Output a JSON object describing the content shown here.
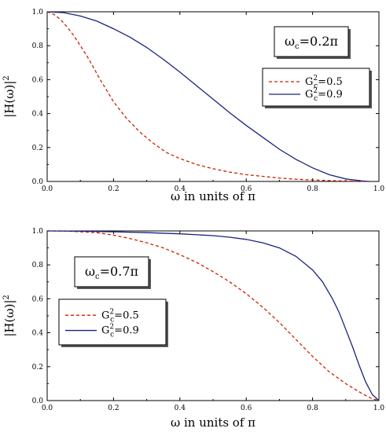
{
  "chart_data": [
    {
      "type": "line",
      "annotation": {
        "main": "ω",
        "sub": "c",
        "rest": "=0.2π"
      },
      "xlabel": "ω in units of π",
      "ylabel": {
        "main": "|H(ω)|",
        "sup": "2"
      },
      "xlim": [
        0,
        1
      ],
      "ylim": [
        0,
        1
      ],
      "xticks": [
        "0.0",
        "0.2",
        "0.4",
        "0.6",
        "0.8",
        "1.0"
      ],
      "yticks": [
        "0.0",
        "0.2",
        "0.4",
        "0.6",
        "0.8",
        "1.0"
      ],
      "grid": false,
      "legend_position": "right",
      "series": [
        {
          "legend": {
            "main": "G",
            "sup": "2",
            "sub": "c",
            "rest": "=0.5"
          },
          "color": "#cc2200",
          "dash": "dashed",
          "x": [
            0,
            0.02,
            0.04,
            0.06,
            0.08,
            0.1,
            0.12,
            0.14,
            0.16,
            0.18,
            0.2,
            0.24,
            0.28,
            0.32,
            0.36,
            0.4,
            0.45,
            0.5,
            0.55,
            0.6,
            0.65,
            0.7,
            0.75,
            0.8,
            0.85,
            0.9,
            0.95,
            0.97
          ],
          "y": [
            1.0,
            0.985,
            0.955,
            0.91,
            0.86,
            0.8,
            0.74,
            0.67,
            0.6,
            0.535,
            0.47,
            0.37,
            0.29,
            0.225,
            0.17,
            0.135,
            0.1,
            0.075,
            0.055,
            0.04,
            0.03,
            0.02,
            0.013,
            0.009,
            0.005,
            0.003,
            0.001,
            0.0
          ]
        },
        {
          "legend": {
            "main": "G",
            "sup": "2",
            "sub": "c",
            "rest": "=0.9"
          },
          "color": "#1a237e",
          "dash": "solid",
          "x": [
            0,
            0.05,
            0.1,
            0.15,
            0.2,
            0.25,
            0.3,
            0.35,
            0.4,
            0.45,
            0.5,
            0.55,
            0.6,
            0.65,
            0.7,
            0.75,
            0.8,
            0.85,
            0.9,
            0.95,
            0.97
          ],
          "y": [
            1.0,
            0.995,
            0.975,
            0.945,
            0.9,
            0.85,
            0.79,
            0.72,
            0.645,
            0.565,
            0.485,
            0.405,
            0.33,
            0.26,
            0.19,
            0.13,
            0.08,
            0.04,
            0.015,
            0.003,
            0.0
          ]
        }
      ]
    },
    {
      "type": "line",
      "annotation": {
        "main": "ω",
        "sub": "c",
        "rest": "=0.7π"
      },
      "xlabel": "ω in units of π",
      "ylabel": {
        "main": "|H(ω)|",
        "sup": "2"
      },
      "xlim": [
        0,
        1
      ],
      "ylim": [
        0,
        1
      ],
      "xticks": [
        "0.0",
        "0.2",
        "0.4",
        "0.6",
        "0.8",
        "1.0"
      ],
      "yticks": [
        "0.0",
        "0.2",
        "0.4",
        "0.6",
        "0.8",
        "1.0"
      ],
      "grid": false,
      "legend_position": "left",
      "series": [
        {
          "legend": {
            "main": "G",
            "sup": "2",
            "sub": "c",
            "rest": "=0.5"
          },
          "color": "#cc2200",
          "dash": "dashed",
          "x": [
            0,
            0.05,
            0.1,
            0.15,
            0.2,
            0.25,
            0.3,
            0.35,
            0.4,
            0.45,
            0.5,
            0.55,
            0.6,
            0.65,
            0.7,
            0.75,
            0.8,
            0.85,
            0.9,
            0.95,
            0.98,
            1.0
          ],
          "y": [
            1.0,
            1.0,
            0.995,
            0.99,
            0.975,
            0.955,
            0.93,
            0.9,
            0.86,
            0.815,
            0.76,
            0.7,
            0.63,
            0.55,
            0.46,
            0.36,
            0.26,
            0.17,
            0.1,
            0.04,
            0.01,
            0.0
          ]
        },
        {
          "legend": {
            "main": "G",
            "sup": "2",
            "sub": "c",
            "rest": "=0.9"
          },
          "color": "#1a237e",
          "dash": "solid",
          "x": [
            0,
            0.1,
            0.2,
            0.3,
            0.4,
            0.5,
            0.55,
            0.6,
            0.65,
            0.7,
            0.75,
            0.8,
            0.83,
            0.86,
            0.88,
            0.9,
            0.92,
            0.94,
            0.96,
            0.98,
            1.0
          ],
          "y": [
            1.0,
            0.998,
            0.995,
            0.99,
            0.983,
            0.972,
            0.963,
            0.95,
            0.93,
            0.9,
            0.85,
            0.77,
            0.7,
            0.6,
            0.52,
            0.42,
            0.32,
            0.21,
            0.11,
            0.035,
            0.0
          ]
        }
      ]
    }
  ]
}
